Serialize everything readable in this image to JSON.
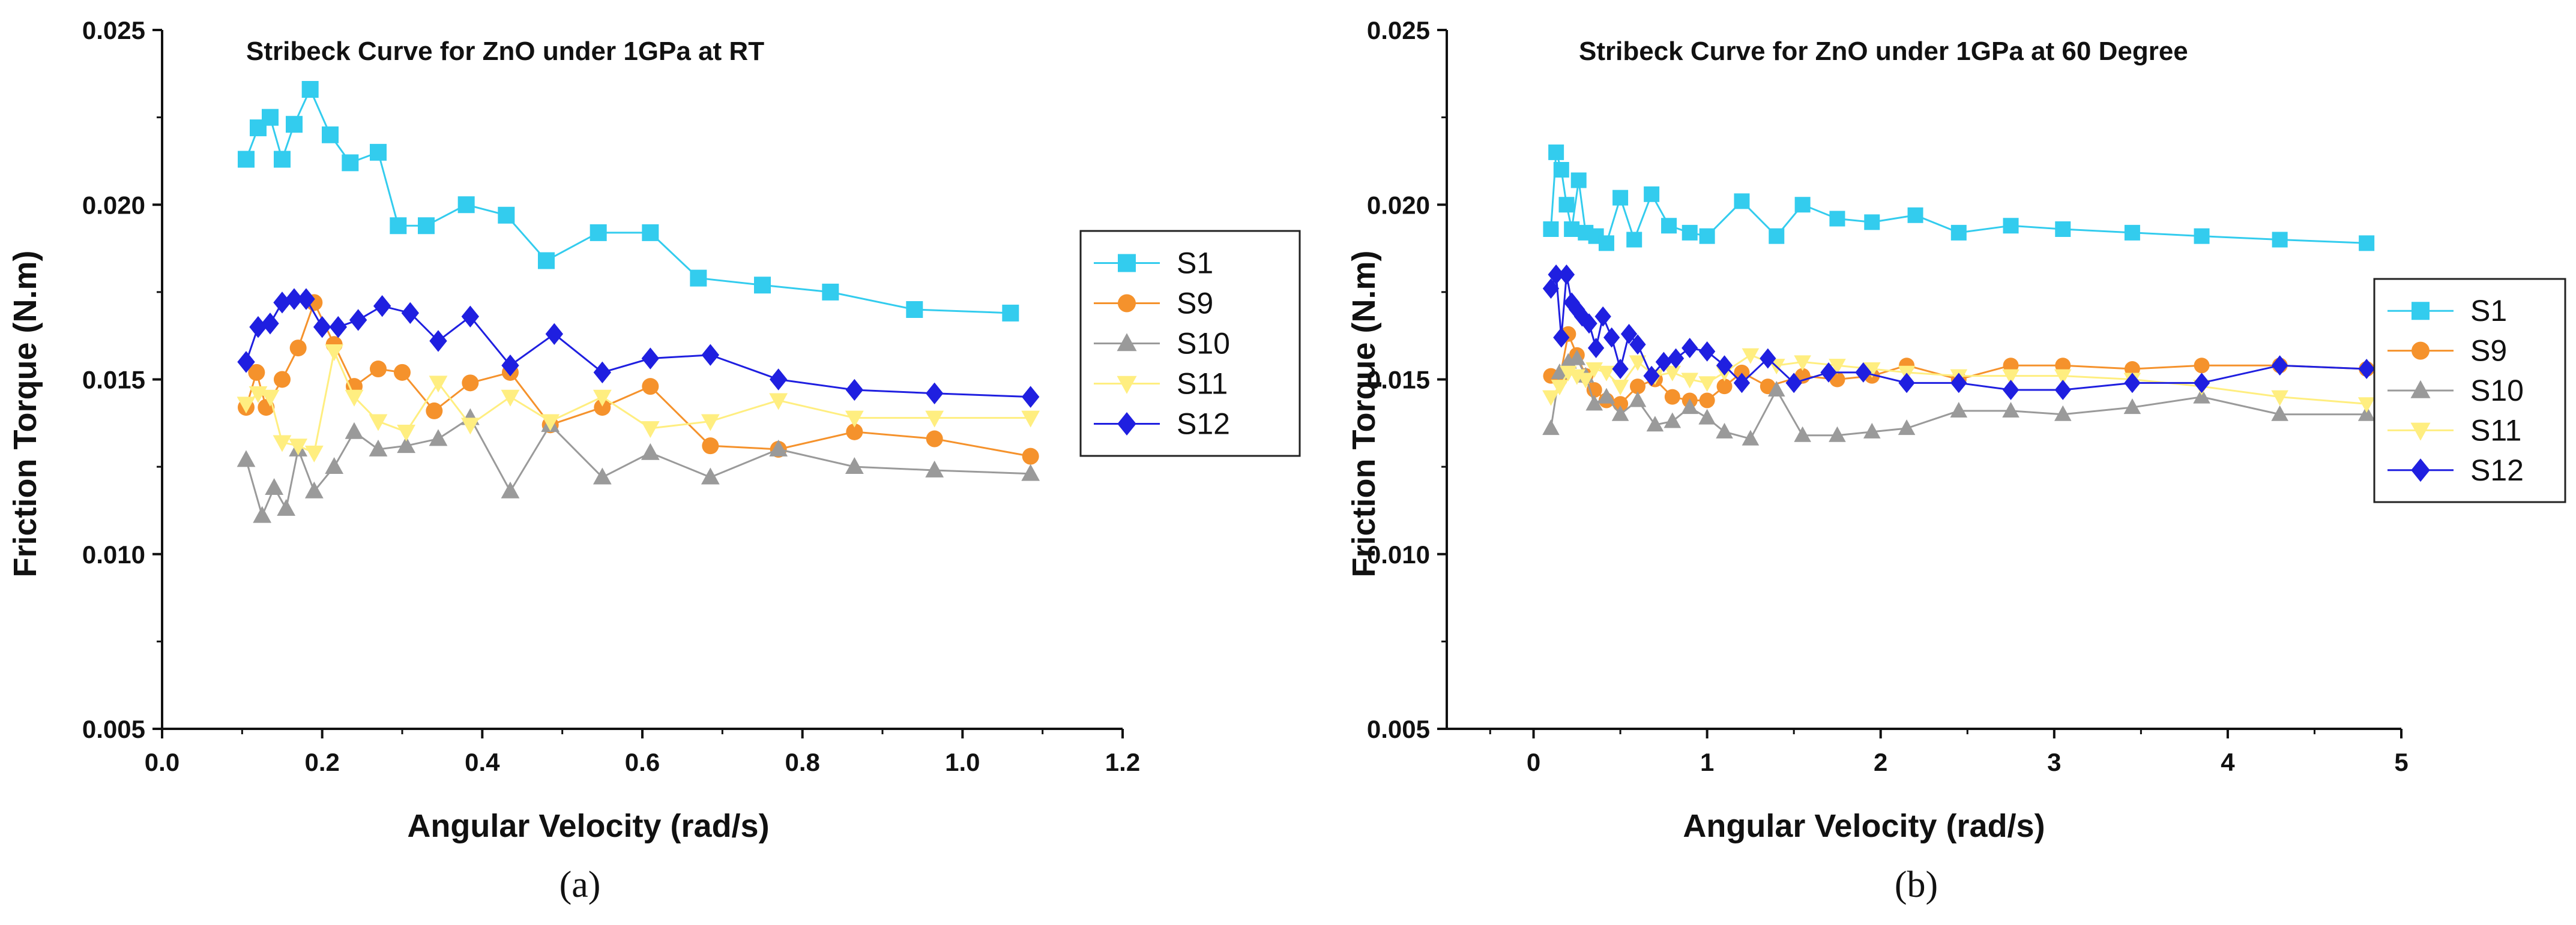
{
  "chart_data": [
    {
      "type": "line",
      "panel_label": "(a)",
      "title": "Stribeck Curve for ZnO under 1GPa at RT",
      "xlabel": "Angular Velocity (rad/s)",
      "ylabel": "Friction Torque (N.m)",
      "xlim": [
        0.0,
        1.2
      ],
      "ylim": [
        0.005,
        0.025
      ],
      "x_tick_labels": [
        "0.0",
        "0.2",
        "0.4",
        "0.6",
        "0.8",
        "1.0",
        "1.2"
      ],
      "y_tick_labels": [
        "0.005",
        "0.010",
        "0.015",
        "0.020",
        "0.025"
      ],
      "grid": false,
      "legend_position": "right",
      "series": [
        {
          "name": "S1",
          "color": "#33CCEE",
          "marker": "square",
          "x": [
            0.105,
            0.12,
            0.135,
            0.15,
            0.165,
            0.185,
            0.21,
            0.235,
            0.27,
            0.295,
            0.33,
            0.38,
            0.43,
            0.48,
            0.545,
            0.61,
            0.67,
            0.75,
            0.835,
            0.94,
            1.06
          ],
          "y": [
            0.0213,
            0.0222,
            0.0225,
            0.0213,
            0.0223,
            0.0233,
            0.022,
            0.0212,
            0.0215,
            0.0194,
            0.0194,
            0.02,
            0.0197,
            0.0184,
            0.0192,
            0.0192,
            0.0179,
            0.0177,
            0.0175,
            0.017,
            0.0169
          ]
        },
        {
          "name": "S9",
          "color": "#F5922C",
          "marker": "circle",
          "x": [
            0.105,
            0.118,
            0.13,
            0.15,
            0.17,
            0.19,
            0.215,
            0.24,
            0.27,
            0.3,
            0.34,
            0.385,
            0.435,
            0.485,
            0.55,
            0.61,
            0.685,
            0.77,
            0.865,
            0.965,
            1.085
          ],
          "y": [
            0.0142,
            0.0152,
            0.0142,
            0.015,
            0.0159,
            0.0172,
            0.016,
            0.0148,
            0.0153,
            0.0152,
            0.0141,
            0.0149,
            0.0152,
            0.0137,
            0.0142,
            0.0148,
            0.0131,
            0.013,
            0.0135,
            0.0133,
            0.0128
          ]
        },
        {
          "name": "S10",
          "color": "#9A9A9A",
          "marker": "triangle-up",
          "x": [
            0.105,
            0.125,
            0.14,
            0.155,
            0.17,
            0.19,
            0.215,
            0.24,
            0.27,
            0.305,
            0.345,
            0.385,
            0.435,
            0.485,
            0.55,
            0.61,
            0.685,
            0.77,
            0.865,
            0.965,
            1.085
          ],
          "y": [
            0.0127,
            0.0111,
            0.0119,
            0.0113,
            0.013,
            0.0118,
            0.0125,
            0.0135,
            0.013,
            0.0131,
            0.0133,
            0.0139,
            0.0118,
            0.0137,
            0.0122,
            0.0129,
            0.0122,
            0.013,
            0.0125,
            0.0124,
            0.0123
          ]
        },
        {
          "name": "S11",
          "color": "#FFEE80",
          "marker": "triangle-down",
          "x": [
            0.105,
            0.12,
            0.135,
            0.15,
            0.17,
            0.19,
            0.215,
            0.24,
            0.27,
            0.305,
            0.345,
            0.385,
            0.435,
            0.485,
            0.55,
            0.61,
            0.685,
            0.77,
            0.865,
            0.965,
            1.085
          ],
          "y": [
            0.0143,
            0.0146,
            0.0145,
            0.0132,
            0.0131,
            0.0129,
            0.0158,
            0.0145,
            0.0138,
            0.0135,
            0.0149,
            0.0137,
            0.0145,
            0.0138,
            0.0145,
            0.0136,
            0.0138,
            0.0144,
            0.0139,
            0.0139,
            0.0139
          ]
        },
        {
          "name": "S12",
          "color": "#1F1FE0",
          "marker": "diamond",
          "x": [
            0.105,
            0.12,
            0.135,
            0.15,
            0.165,
            0.18,
            0.2,
            0.22,
            0.245,
            0.275,
            0.31,
            0.345,
            0.385,
            0.435,
            0.49,
            0.55,
            0.61,
            0.685,
            0.77,
            0.865,
            0.965,
            1.085
          ],
          "y": [
            0.0155,
            0.0165,
            0.0166,
            0.0172,
            0.0173,
            0.0173,
            0.0165,
            0.0165,
            0.0167,
            0.0171,
            0.0169,
            0.0161,
            0.0168,
            0.0154,
            0.0163,
            0.0152,
            0.0156,
            0.0157,
            0.015,
            0.0147,
            0.0146,
            0.0145
          ]
        }
      ]
    },
    {
      "type": "line",
      "panel_label": "(b)",
      "title": "Stribeck Curve for ZnO under 1GPa at 60 Degree",
      "xlabel": "Angular Velocity (rad/s)",
      "ylabel": "Friction Torque (N.m)",
      "xlim": [
        -0.5,
        5.0
      ],
      "ylim": [
        0.005,
        0.025
      ],
      "x_tick_labels": [
        "0",
        "1",
        "2",
        "3",
        "4",
        "5"
      ],
      "y_tick_labels": [
        "0.005",
        "0.010",
        "0.015",
        "0.020",
        "0.025"
      ],
      "grid": false,
      "legend_position": "right",
      "series": [
        {
          "name": "S1",
          "color": "#33CCEE",
          "marker": "square",
          "x": [
            0.1,
            0.13,
            0.16,
            0.19,
            0.22,
            0.26,
            0.3,
            0.36,
            0.42,
            0.5,
            0.58,
            0.68,
            0.78,
            0.9,
            1.0,
            1.2,
            1.4,
            1.55,
            1.75,
            1.95,
            2.2,
            2.45,
            2.75,
            3.05,
            3.45,
            3.85,
            4.3,
            4.8
          ],
          "y": [
            0.0193,
            0.0215,
            0.021,
            0.02,
            0.0193,
            0.0207,
            0.0192,
            0.0191,
            0.0189,
            0.0202,
            0.019,
            0.0203,
            0.0194,
            0.0192,
            0.0191,
            0.0201,
            0.0191,
            0.02,
            0.0196,
            0.0195,
            0.0197,
            0.0192,
            0.0194,
            0.0193,
            0.0192,
            0.0191,
            0.019,
            0.0189
          ]
        },
        {
          "name": "S9",
          "color": "#F5922C",
          "marker": "circle",
          "x": [
            0.1,
            0.15,
            0.2,
            0.25,
            0.3,
            0.35,
            0.42,
            0.5,
            0.6,
            0.7,
            0.8,
            0.9,
            1.0,
            1.1,
            1.2,
            1.35,
            1.55,
            1.75,
            1.95,
            2.15,
            2.45,
            2.75,
            3.05,
            3.45,
            3.85,
            4.3,
            4.8
          ],
          "y": [
            0.0151,
            0.015,
            0.0163,
            0.0157,
            0.0151,
            0.0147,
            0.0144,
            0.0143,
            0.0148,
            0.015,
            0.0145,
            0.0144,
            0.0144,
            0.0148,
            0.0152,
            0.0148,
            0.0151,
            0.015,
            0.0151,
            0.0154,
            0.015,
            0.0154,
            0.0154,
            0.0153,
            0.0154,
            0.0154,
            0.0153
          ]
        },
        {
          "name": "S10",
          "color": "#9A9A9A",
          "marker": "triangle-up",
          "x": [
            0.1,
            0.15,
            0.2,
            0.25,
            0.3,
            0.35,
            0.42,
            0.5,
            0.6,
            0.7,
            0.8,
            0.9,
            1.0,
            1.1,
            1.25,
            1.4,
            1.55,
            1.75,
            1.95,
            2.15,
            2.45,
            2.75,
            3.05,
            3.45,
            3.85,
            4.3,
            4.8
          ],
          "y": [
            0.0136,
            0.0152,
            0.0155,
            0.0156,
            0.0151,
            0.0143,
            0.0145,
            0.014,
            0.0144,
            0.0137,
            0.0138,
            0.0142,
            0.0139,
            0.0135,
            0.0133,
            0.0147,
            0.0134,
            0.0134,
            0.0135,
            0.0136,
            0.0141,
            0.0141,
            0.014,
            0.0142,
            0.0145,
            0.014,
            0.014
          ]
        },
        {
          "name": "S11",
          "color": "#FFEE80",
          "marker": "triangle-down",
          "x": [
            0.1,
            0.15,
            0.2,
            0.25,
            0.3,
            0.35,
            0.42,
            0.5,
            0.6,
            0.7,
            0.8,
            0.9,
            1.0,
            1.1,
            1.25,
            1.4,
            1.55,
            1.75,
            1.95,
            2.15,
            2.45,
            2.75,
            3.05,
            3.45,
            3.85,
            4.3,
            4.8
          ],
          "y": [
            0.0145,
            0.0148,
            0.0152,
            0.0151,
            0.015,
            0.0153,
            0.0152,
            0.0148,
            0.0155,
            0.0151,
            0.0152,
            0.015,
            0.0149,
            0.0152,
            0.0157,
            0.0154,
            0.0155,
            0.0154,
            0.0153,
            0.0152,
            0.0151,
            0.0151,
            0.0151,
            0.015,
            0.0148,
            0.0145,
            0.0143
          ]
        },
        {
          "name": "S12",
          "color": "#1F1FE0",
          "marker": "diamond",
          "x": [
            0.1,
            0.13,
            0.16,
            0.19,
            0.22,
            0.25,
            0.28,
            0.32,
            0.36,
            0.4,
            0.45,
            0.5,
            0.55,
            0.6,
            0.68,
            0.75,
            0.82,
            0.9,
            1.0,
            1.1,
            1.2,
            1.35,
            1.5,
            1.7,
            1.9,
            2.15,
            2.45,
            2.75,
            3.05,
            3.45,
            3.85,
            4.3,
            4.8
          ],
          "y": [
            0.0176,
            0.018,
            0.0162,
            0.018,
            0.0172,
            0.017,
            0.0168,
            0.0166,
            0.0159,
            0.0168,
            0.0162,
            0.0153,
            0.0163,
            0.016,
            0.0151,
            0.0155,
            0.0156,
            0.0159,
            0.0158,
            0.0154,
            0.0149,
            0.0156,
            0.0149,
            0.0152,
            0.0152,
            0.0149,
            0.0149,
            0.0147,
            0.0147,
            0.0149,
            0.0149,
            0.0154,
            0.0153
          ]
        }
      ]
    }
  ]
}
